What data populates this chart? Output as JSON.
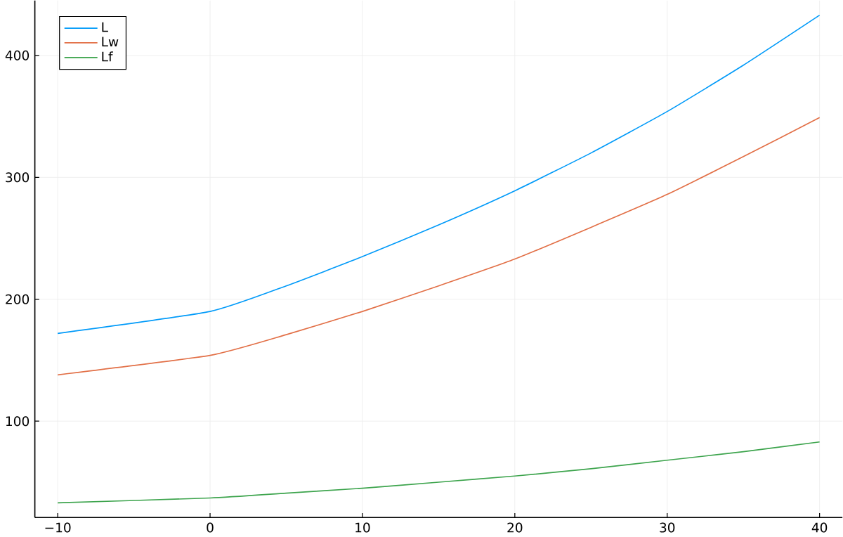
{
  "chart_data": {
    "type": "line",
    "x": [
      -10,
      0,
      5,
      10,
      15,
      20,
      25,
      30,
      35,
      40
    ],
    "series": [
      {
        "name": "L",
        "color": "#009af9",
        "values": [
          172,
          190,
          211,
          235,
          261,
          289,
          320,
          354,
          392,
          433
        ]
      },
      {
        "name": "Lw",
        "color": "#e26f46",
        "values": [
          138,
          154,
          171,
          190,
          211,
          233,
          259,
          286,
          317,
          349
        ]
      },
      {
        "name": "Lf",
        "color": "#3da44d",
        "values": [
          33,
          37,
          41,
          45,
          50,
          55,
          61,
          68,
          75,
          83
        ]
      }
    ],
    "xlim": [
      -11.5,
      41.5
    ],
    "ylim": [
      21,
      445
    ],
    "xticks": [
      {
        "value": -10,
        "label": "−10"
      },
      0,
      10,
      20,
      30,
      40
    ],
    "yticks": [
      100,
      200,
      300,
      400
    ],
    "grid": true,
    "legend": "top left",
    "marker": "none",
    "line_style": "solid"
  }
}
